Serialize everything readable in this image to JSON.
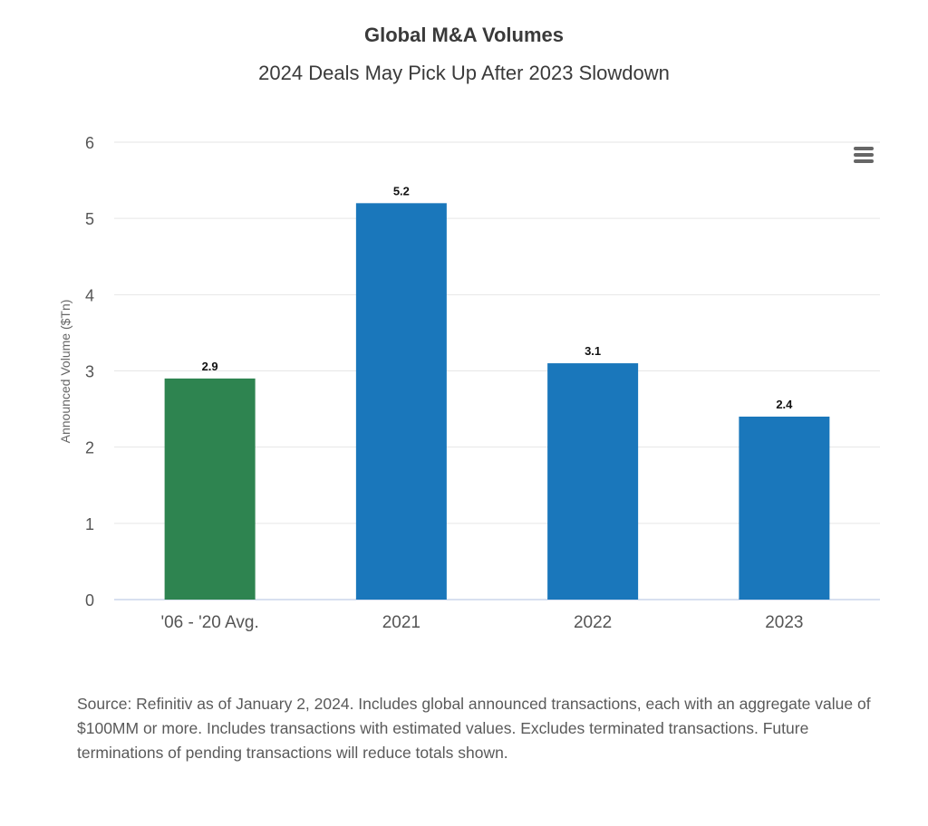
{
  "chart_data": {
    "type": "bar",
    "title": "Global M&A Volumes",
    "subtitle": "2024 Deals May Pick Up After 2023 Slowdown",
    "xlabel": "",
    "ylabel": "Announced Volume ($Tn)",
    "categories": [
      "'06 - '20 Avg.",
      "2021",
      "2022",
      "2023"
    ],
    "values": [
      2.9,
      5.2,
      3.1,
      2.4
    ],
    "data_labels": [
      "2.9",
      "5.2",
      "3.1",
      "2.4"
    ],
    "bar_colors": [
      "#2e8450",
      "#1a77bb",
      "#1a77bb",
      "#1a77bb"
    ],
    "ylim": [
      0,
      6
    ],
    "yticks": [
      0,
      1,
      2,
      3,
      4,
      5,
      6
    ],
    "grid": true,
    "legend": "none"
  },
  "menu": {
    "icon": "hamburger-menu-icon"
  },
  "source_note": "Source: Refinitiv as of January 2, 2024. Includes global announced transactions, each with an aggregate value of $100MM or more. Includes transactions with estimated values. Excludes terminated transactions. Future terminations of pending transactions will reduce totals shown."
}
